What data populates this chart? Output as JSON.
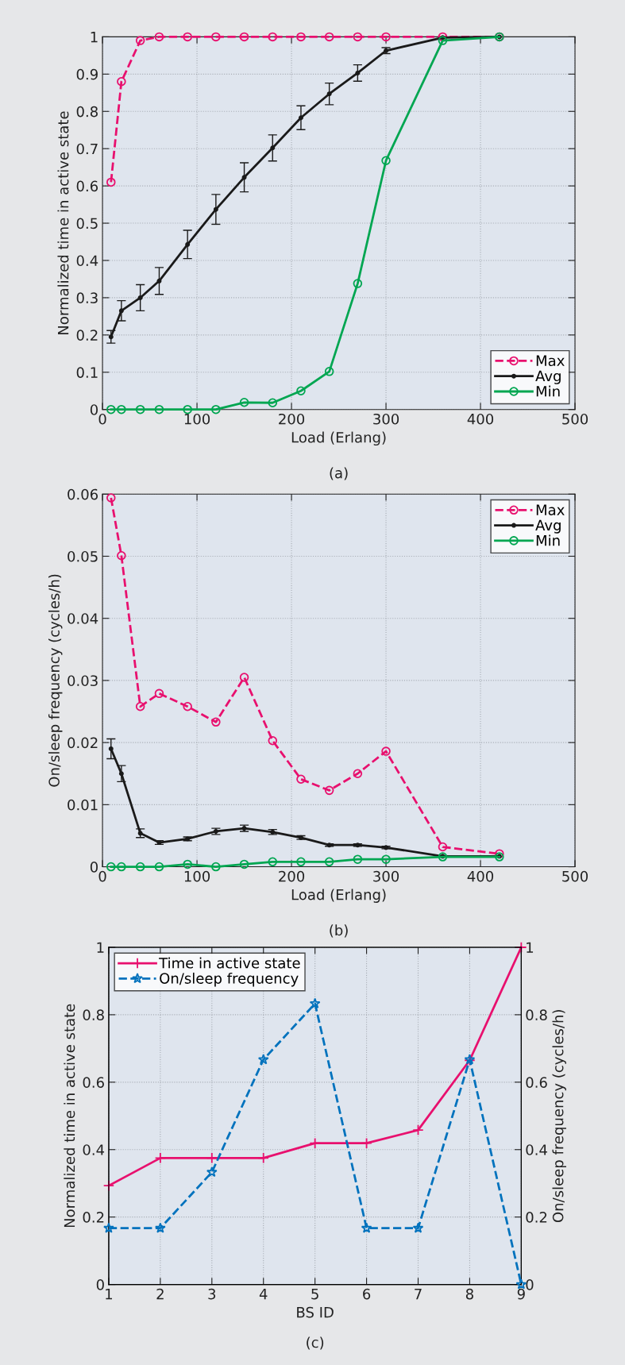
{
  "chart_data": [
    {
      "type": "line",
      "xlabel": "Load (Erlang)",
      "ylabel": "Normalized time in active state",
      "annotations": [
        "(a)"
      ],
      "x": [
        9,
        20,
        40,
        60,
        90,
        120,
        150,
        180,
        210,
        240,
        270,
        300,
        360,
        420
      ],
      "xlim": [
        0,
        500
      ],
      "xticks": [
        0,
        100,
        200,
        300,
        400,
        500
      ],
      "ylim": [
        0,
        1
      ],
      "yticks": [
        0,
        0.1,
        0.2,
        0.3,
        0.4,
        0.5,
        0.6,
        0.7,
        0.8,
        0.9,
        1
      ],
      "grid": true,
      "legend": "bottom right",
      "series": [
        {
          "name": "Max",
          "color": "#e8106e",
          "line_style": "dashed",
          "marker": "circle",
          "values": [
            0.61,
            0.88,
            0.99,
            1,
            1,
            1,
            1,
            1,
            1,
            1,
            1,
            1,
            1,
            1
          ]
        },
        {
          "name": "Avg",
          "color": "#1a1a1a",
          "line_style": "solid",
          "marker": "circle",
          "values": [
            0.195,
            0.265,
            0.3,
            0.345,
            0.443,
            0.537,
            0.623,
            0.702,
            0.783,
            0.847,
            0.903,
            0.963,
            0.998,
            1
          ],
          "errors": [
            0.017,
            0.027,
            0.035,
            0.036,
            0.038,
            0.04,
            0.039,
            0.035,
            0.032,
            0.029,
            0.022,
            0.008,
            null,
            null
          ]
        },
        {
          "name": "Min",
          "color": "#00a651",
          "line_style": "solid",
          "marker": "circle",
          "values": [
            0,
            0,
            0,
            0,
            0,
            0,
            0.019,
            0.018,
            0.05,
            0.102,
            0.338,
            0.668,
            0.99,
            1
          ]
        }
      ]
    },
    {
      "type": "line",
      "xlabel": "Load (Erlang)",
      "ylabel": "On/sleep frequency (cycles/h)",
      "annotations": [
        "(b)"
      ],
      "x": [
        9,
        20,
        40,
        60,
        90,
        120,
        150,
        180,
        210,
        240,
        270,
        300,
        360,
        420
      ],
      "xlim": [
        0,
        500
      ],
      "xticks": [
        0,
        100,
        200,
        300,
        400,
        500
      ],
      "ylim": [
        0,
        0.06
      ],
      "yticks": [
        0,
        0.01,
        0.02,
        0.03,
        0.04,
        0.05,
        0.06
      ],
      "grid": true,
      "legend": "top right",
      "series": [
        {
          "name": "Max",
          "color": "#e8106e",
          "line_style": "dashed",
          "marker": "circle",
          "values": [
            0.0594,
            0.0501,
            0.0258,
            0.0279,
            0.0258,
            0.0233,
            0.0305,
            0.0203,
            0.0141,
            0.0123,
            0.015,
            0.0186,
            0.0032,
            0.0021
          ]
        },
        {
          "name": "Avg",
          "color": "#1a1a1a",
          "line_style": "solid",
          "marker": "circle",
          "values": [
            0.019,
            0.015,
            0.0054,
            0.0039,
            0.0045,
            0.0057,
            0.0062,
            0.0056,
            0.0047,
            0.0035,
            0.0035,
            0.0031,
            0.0017,
            0.0017
          ],
          "errors": [
            0.0016,
            0.0013,
            0.0007,
            0.0003,
            0.0003,
            0.0005,
            0.0005,
            0.0004,
            0.0003,
            0.0002,
            0.0002,
            0.0002,
            null,
            null
          ]
        },
        {
          "name": "Min",
          "color": "#00a651",
          "line_style": "solid",
          "marker": "circle",
          "values": [
            0,
            0,
            0,
            0,
            0.0004,
            0,
            0.0004,
            0.0008,
            0.0008,
            0.0008,
            0.0012,
            0.0012,
            0.0016,
            0.0016
          ]
        }
      ]
    },
    {
      "type": "line",
      "xlabel": "BS ID",
      "ylabel": "Normalized time in active state",
      "y2label": "On/sleep frequency (cycles/h)",
      "annotations": [
        "(c)"
      ],
      "x": [
        1,
        2,
        3,
        4,
        5,
        6,
        7,
        8,
        9
      ],
      "xlim": [
        1,
        9
      ],
      "xticks": [
        1,
        2,
        3,
        4,
        5,
        6,
        7,
        8,
        9
      ],
      "ylim": [
        0,
        1
      ],
      "yticks": [
        0,
        0.2,
        0.4,
        0.6,
        0.8,
        1
      ],
      "y2lim": [
        0,
        1
      ],
      "y2ticks": [
        0,
        0.2,
        0.4,
        0.6,
        0.8,
        1
      ],
      "grid": true,
      "legend": "top left",
      "series": [
        {
          "name": "Time in active state",
          "color": "#e8106e",
          "line_style": "solid",
          "marker": "cross",
          "values": [
            0.293,
            0.375,
            0.375,
            0.375,
            0.419,
            0.419,
            0.458,
            0.665,
            1
          ]
        },
        {
          "name": "On/sleep frequency",
          "color": "#0072bd",
          "line_style": "dashed",
          "marker": "star",
          "axis": "y2",
          "values": [
            0.167,
            0.167,
            0.333,
            0.667,
            0.833,
            0.167,
            0.167,
            0.667,
            0
          ]
        }
      ]
    }
  ]
}
